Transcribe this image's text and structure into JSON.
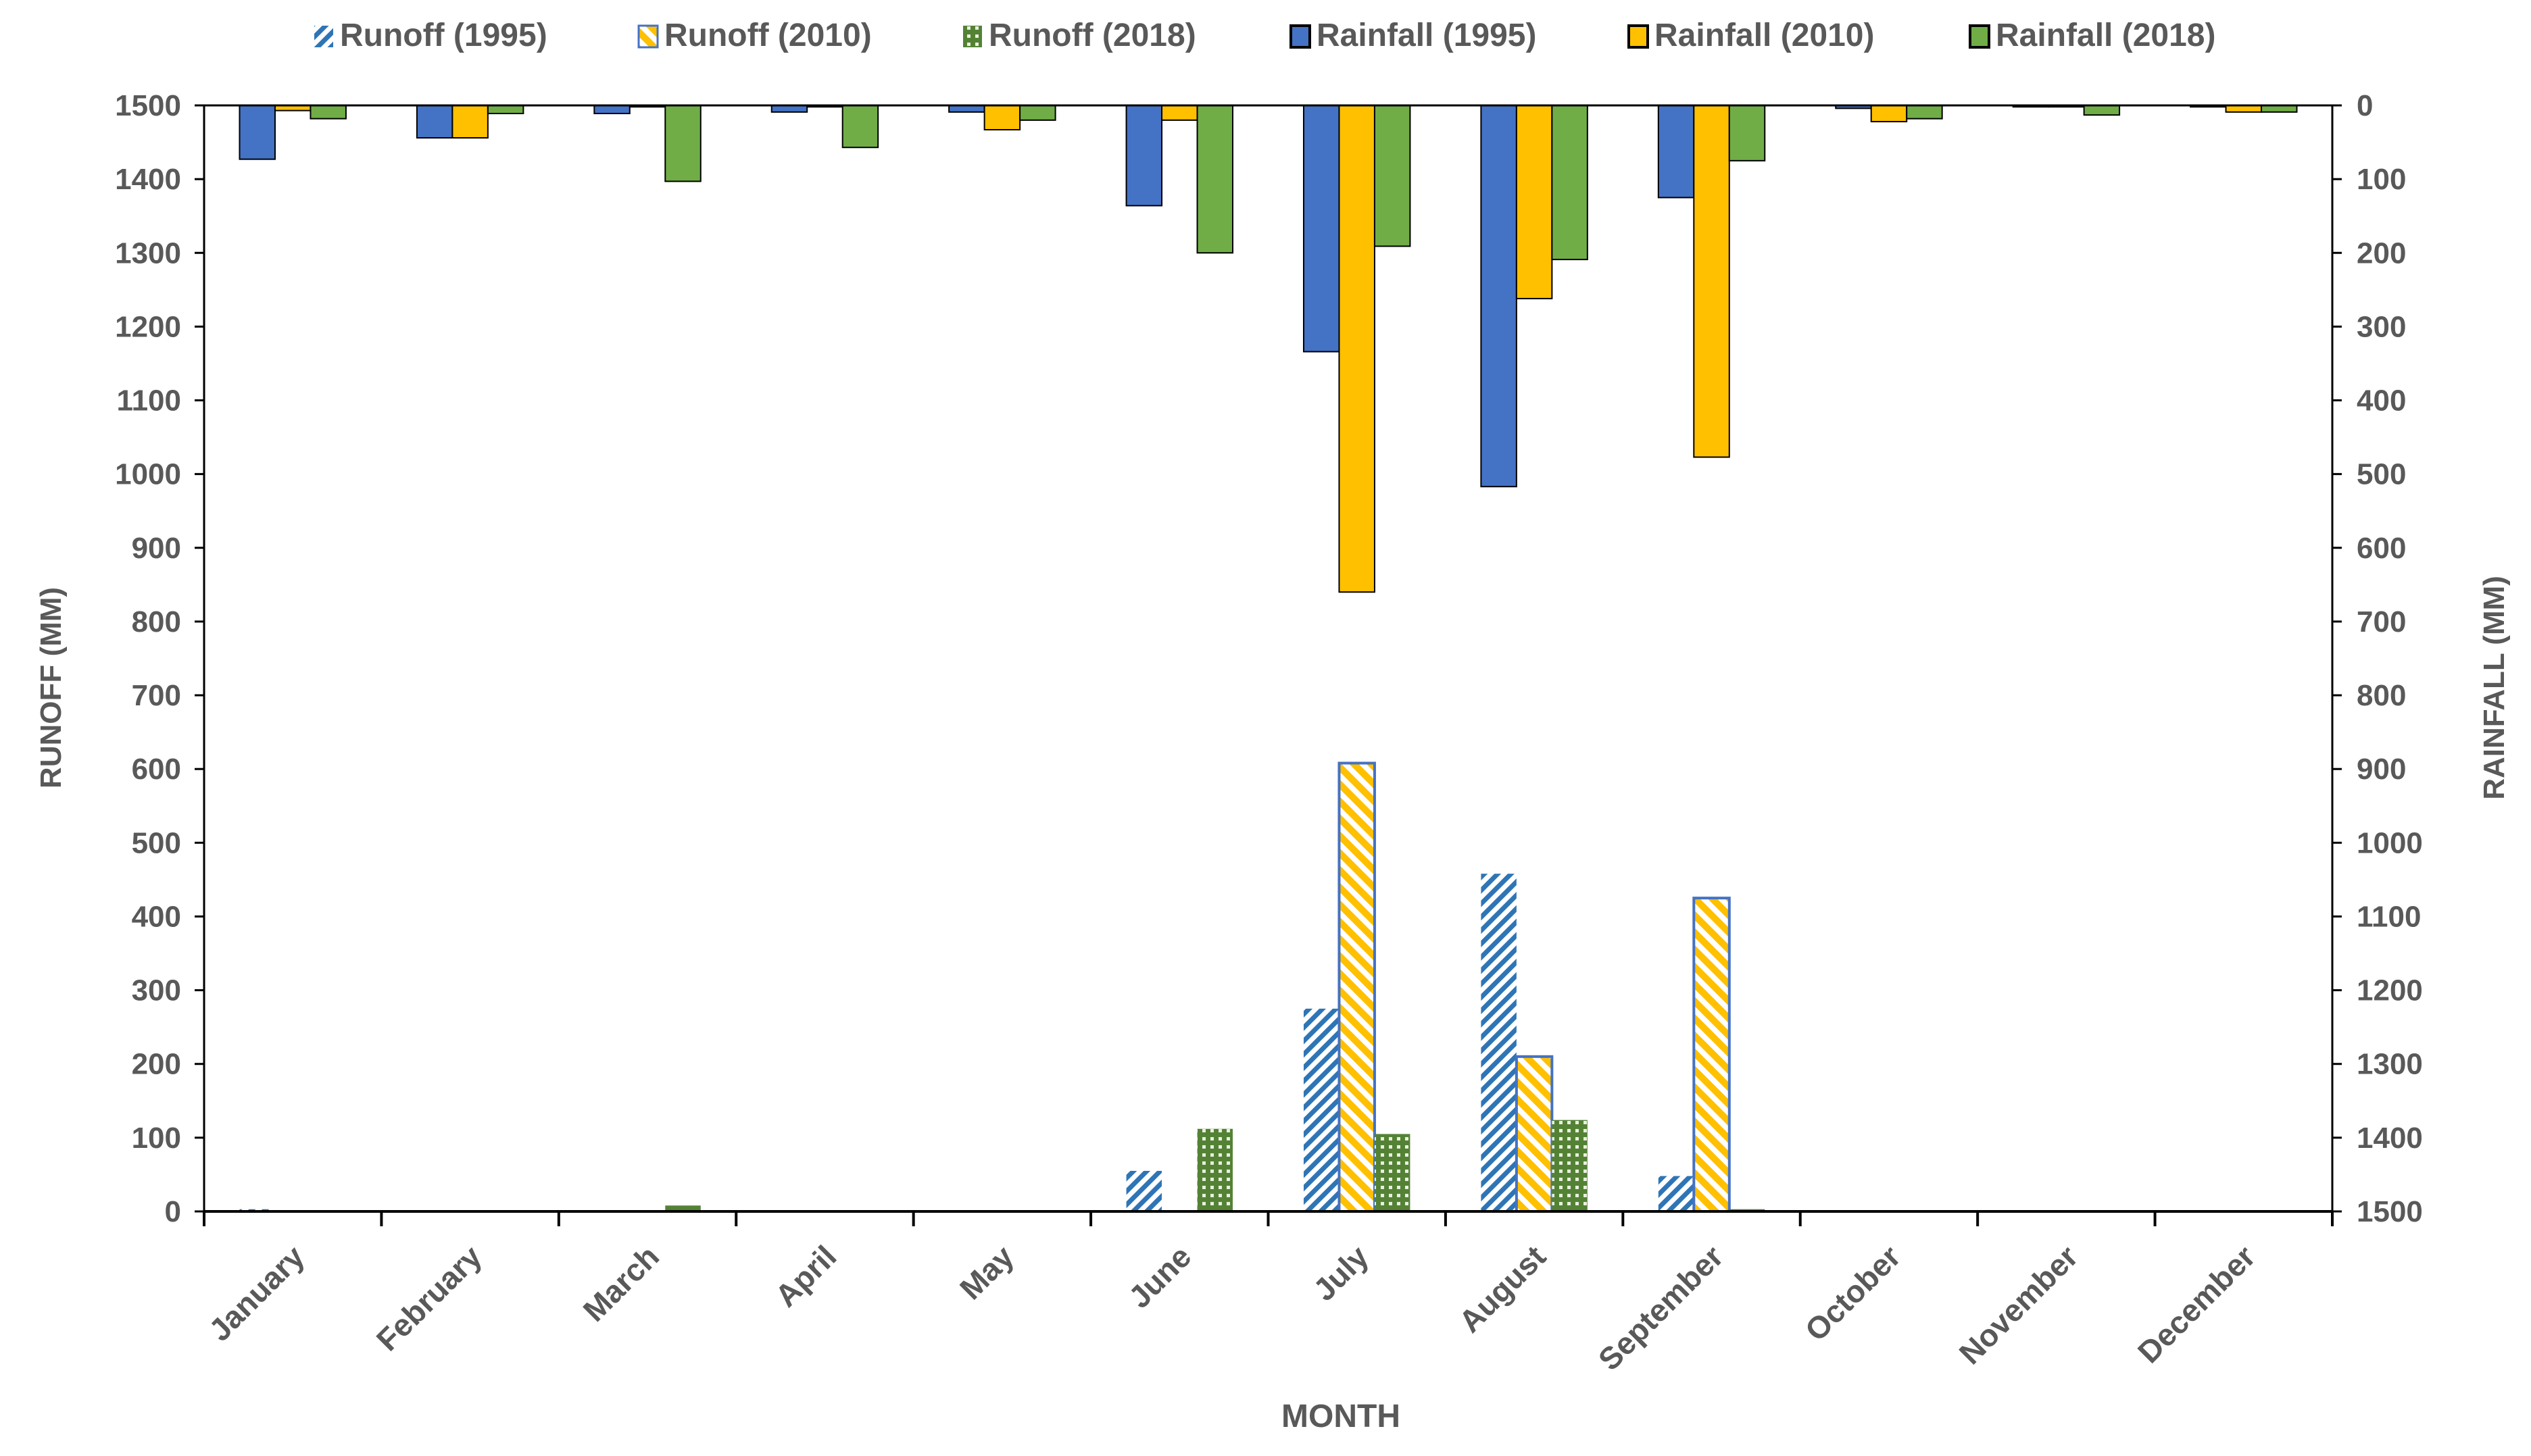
{
  "chart_data": {
    "type": "bar",
    "xlabel": "MONTH",
    "ylabel": "RUNOFF (MM)",
    "y2label": "RAINFALL (MM)",
    "ylim": [
      0,
      1500
    ],
    "y2lim": [
      0,
      1500
    ],
    "y2_inverted": true,
    "yticks": [
      0,
      100,
      200,
      300,
      400,
      500,
      600,
      700,
      800,
      900,
      1000,
      1100,
      1200,
      1300,
      1400,
      1500
    ],
    "y2ticks": [
      0,
      100,
      200,
      300,
      400,
      500,
      600,
      700,
      800,
      900,
      1000,
      1100,
      1200,
      1300,
      1400,
      1500
    ],
    "grid": false,
    "legend_position": "top",
    "categories": [
      "January",
      "February",
      "March",
      "April",
      "May",
      "June",
      "July",
      "August",
      "September",
      "October",
      "November",
      "December"
    ],
    "series": [
      {
        "name": "Runoff (1995)",
        "axis": "left",
        "color": "#2E75B6",
        "pattern": "diagonal-hatch",
        "values": [
          3,
          0,
          0,
          0,
          0,
          55,
          275,
          458,
          48,
          0,
          0,
          0
        ]
      },
      {
        "name": "Runoff (2010)",
        "axis": "left",
        "color": "#FFC000",
        "pattern": "wide-diagonal-hatch",
        "border": "#4472C4",
        "values": [
          0,
          0,
          0,
          0,
          0,
          0,
          608,
          210,
          425,
          0,
          0,
          0
        ]
      },
      {
        "name": "Runoff (2018)",
        "axis": "left",
        "color": "#548235",
        "pattern": "dotted-grid",
        "values": [
          0,
          0,
          8,
          0,
          0,
          112,
          105,
          124,
          3,
          0,
          0,
          0
        ]
      },
      {
        "name": "Rainfall (1995)",
        "axis": "right",
        "color": "#4472C4",
        "values": [
          73,
          44,
          11,
          9,
          9,
          136,
          334,
          517,
          125,
          4,
          2,
          2
        ]
      },
      {
        "name": "Rainfall (2010)",
        "axis": "right",
        "color": "#FFC000",
        "values": [
          7,
          44,
          2,
          2,
          33,
          20,
          660,
          262,
          477,
          22,
          2,
          9
        ]
      },
      {
        "name": "Rainfall (2018)",
        "axis": "right",
        "color": "#70AD47",
        "values": [
          18,
          11,
          103,
          57,
          20,
          200,
          191,
          209,
          75,
          18,
          13,
          9
        ]
      }
    ]
  }
}
